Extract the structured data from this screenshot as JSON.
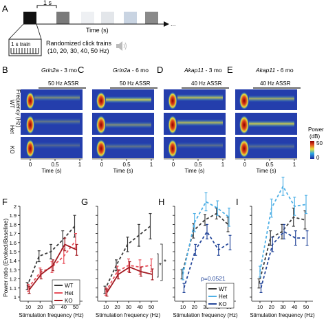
{
  "panel_labels": {
    "A": "A",
    "B": "B",
    "C": "C",
    "D": "D",
    "E": "E",
    "F": "F",
    "G": "G",
    "H": "H",
    "I": "I"
  },
  "schematic": {
    "duration_label": "1 s",
    "time_axis_label": "Time (s)",
    "ellipsis": "...",
    "train_label": "1 s train",
    "randomized_line1": "Randomized click trains",
    "randomized_line2": "(10, 20, 30, 40, 50 Hz)",
    "block_colors": [
      "#111111",
      "#7a7a7a",
      "#eef0f3",
      "#e3e6ea",
      "#c9d4e2",
      "#8a8a8a"
    ]
  },
  "spectrogram_titles": [
    {
      "gene": "Grin2a",
      "age": " - 3 mo"
    },
    {
      "gene": "Grin2a",
      "age": " - 6 mo"
    },
    {
      "gene": "Akap11",
      "age": " - 3 mo"
    },
    {
      "gene": "Akap11",
      "age": " - 6 mo"
    }
  ],
  "assr_labels": [
    "50 Hz ASSR",
    "50 Hz ASSR",
    "40 Hz ASSR",
    "40 Hz ASSR"
  ],
  "row_labels": [
    "WT",
    "Het",
    "KO"
  ],
  "frequency_label": "Frequency (Hz)",
  "spectro_xticks": [
    "0",
    "0.5",
    "1"
  ],
  "spectro_xlabel": "Time (s)",
  "colorbar": {
    "title_line1": "Power",
    "title_line2": "(dB)",
    "max": "50",
    "min": "0"
  },
  "power_ratio_label": "Power ratio  (Evoked/Baseline)",
  "yticks": [
    "1",
    "1.1",
    "1.2",
    "1.3",
    "1.4",
    "1.5",
    "1.6",
    "1.7",
    "1.8",
    "1.9",
    "2"
  ],
  "xticks": [
    "10",
    "20",
    "30",
    "40",
    "50"
  ],
  "stim_xlabel": "Stimulation frequency (Hz)",
  "legend_grin": [
    "WT",
    "Het",
    "KO"
  ],
  "legend_akap": [
    "WT",
    "Het",
    "KO"
  ],
  "pvalue": "p=0.0521",
  "sig_star": "*",
  "colors": {
    "wt": "#3a3a3a",
    "grin_het": "#e8505b",
    "grin_ko": "#a31b22",
    "akap_het": "#4fb0e6",
    "akap_ko": "#25479a"
  },
  "chart_data": [
    {
      "type": "line",
      "panel": "F",
      "x": [
        10,
        20,
        30,
        40,
        50
      ],
      "ylim": [
        1,
        2
      ],
      "series": [
        {
          "name": "WT",
          "values": [
            1.12,
            1.45,
            1.5,
            1.63,
            1.78
          ],
          "err": [
            0.04,
            0.06,
            0.08,
            0.1,
            0.12
          ]
        },
        {
          "name": "Het",
          "values": [
            1.1,
            1.27,
            1.33,
            1.45,
            1.62
          ],
          "err": [
            0.04,
            0.05,
            0.06,
            0.08,
            0.08
          ]
        },
        {
          "name": "KO",
          "values": [
            1.08,
            1.25,
            1.35,
            1.58,
            1.52
          ],
          "err": [
            0.04,
            0.05,
            0.06,
            0.07,
            0.06
          ]
        }
      ]
    },
    {
      "type": "line",
      "panel": "G",
      "x": [
        10,
        20,
        30,
        40,
        50
      ],
      "ylim": [
        1,
        2
      ],
      "series": [
        {
          "name": "WT",
          "values": [
            1.08,
            1.35,
            1.58,
            1.68,
            1.78
          ],
          "err": [
            0.04,
            0.06,
            0.08,
            0.12,
            0.14
          ]
        },
        {
          "name": "Het",
          "values": [
            1.06,
            1.28,
            1.35,
            1.33,
            1.35
          ],
          "err": [
            0.04,
            0.06,
            0.07,
            0.08,
            0.07
          ]
        },
        {
          "name": "KO",
          "values": [
            1.05,
            1.25,
            1.33,
            1.28,
            1.25
          ],
          "err": [
            0.04,
            0.05,
            0.06,
            0.05,
            0.06
          ]
        }
      ]
    },
    {
      "type": "line",
      "panel": "H",
      "x": [
        10,
        20,
        30,
        40,
        50
      ],
      "ylim": [
        1,
        2
      ],
      "series": [
        {
          "name": "WT",
          "values": [
            1.25,
            1.73,
            1.85,
            1.92,
            1.8
          ],
          "err": [
            0.05,
            0.08,
            0.06,
            0.06,
            0.08
          ]
        },
        {
          "name": "Het",
          "values": [
            1.25,
            1.82,
            2.05,
            1.98,
            1.88
          ],
          "err": [
            0.06,
            0.1,
            0.1,
            0.08,
            0.1
          ]
        },
        {
          "name": "KO",
          "values": [
            1.1,
            1.52,
            1.72,
            1.52,
            1.6
          ],
          "err": [
            0.05,
            0.06,
            0.08,
            0.06,
            0.08
          ]
        }
      ]
    },
    {
      "type": "line",
      "panel": "I",
      "x": [
        10,
        20,
        30,
        40,
        50
      ],
      "ylim": [
        1,
        2
      ],
      "series": [
        {
          "name": "WT",
          "values": [
            1.15,
            1.65,
            1.72,
            1.88,
            1.85
          ],
          "err": [
            0.05,
            0.08,
            0.08,
            0.1,
            0.1
          ]
        },
        {
          "name": "Het",
          "values": [
            1.28,
            1.98,
            2.22,
            2.0,
            2.02
          ],
          "err": [
            0.06,
            0.1,
            0.1,
            0.1,
            0.1
          ]
        },
        {
          "name": "KO",
          "values": [
            1.1,
            1.58,
            1.72,
            1.65,
            1.65
          ],
          "err": [
            0.05,
            0.08,
            0.08,
            0.08,
            0.08
          ]
        }
      ]
    }
  ]
}
